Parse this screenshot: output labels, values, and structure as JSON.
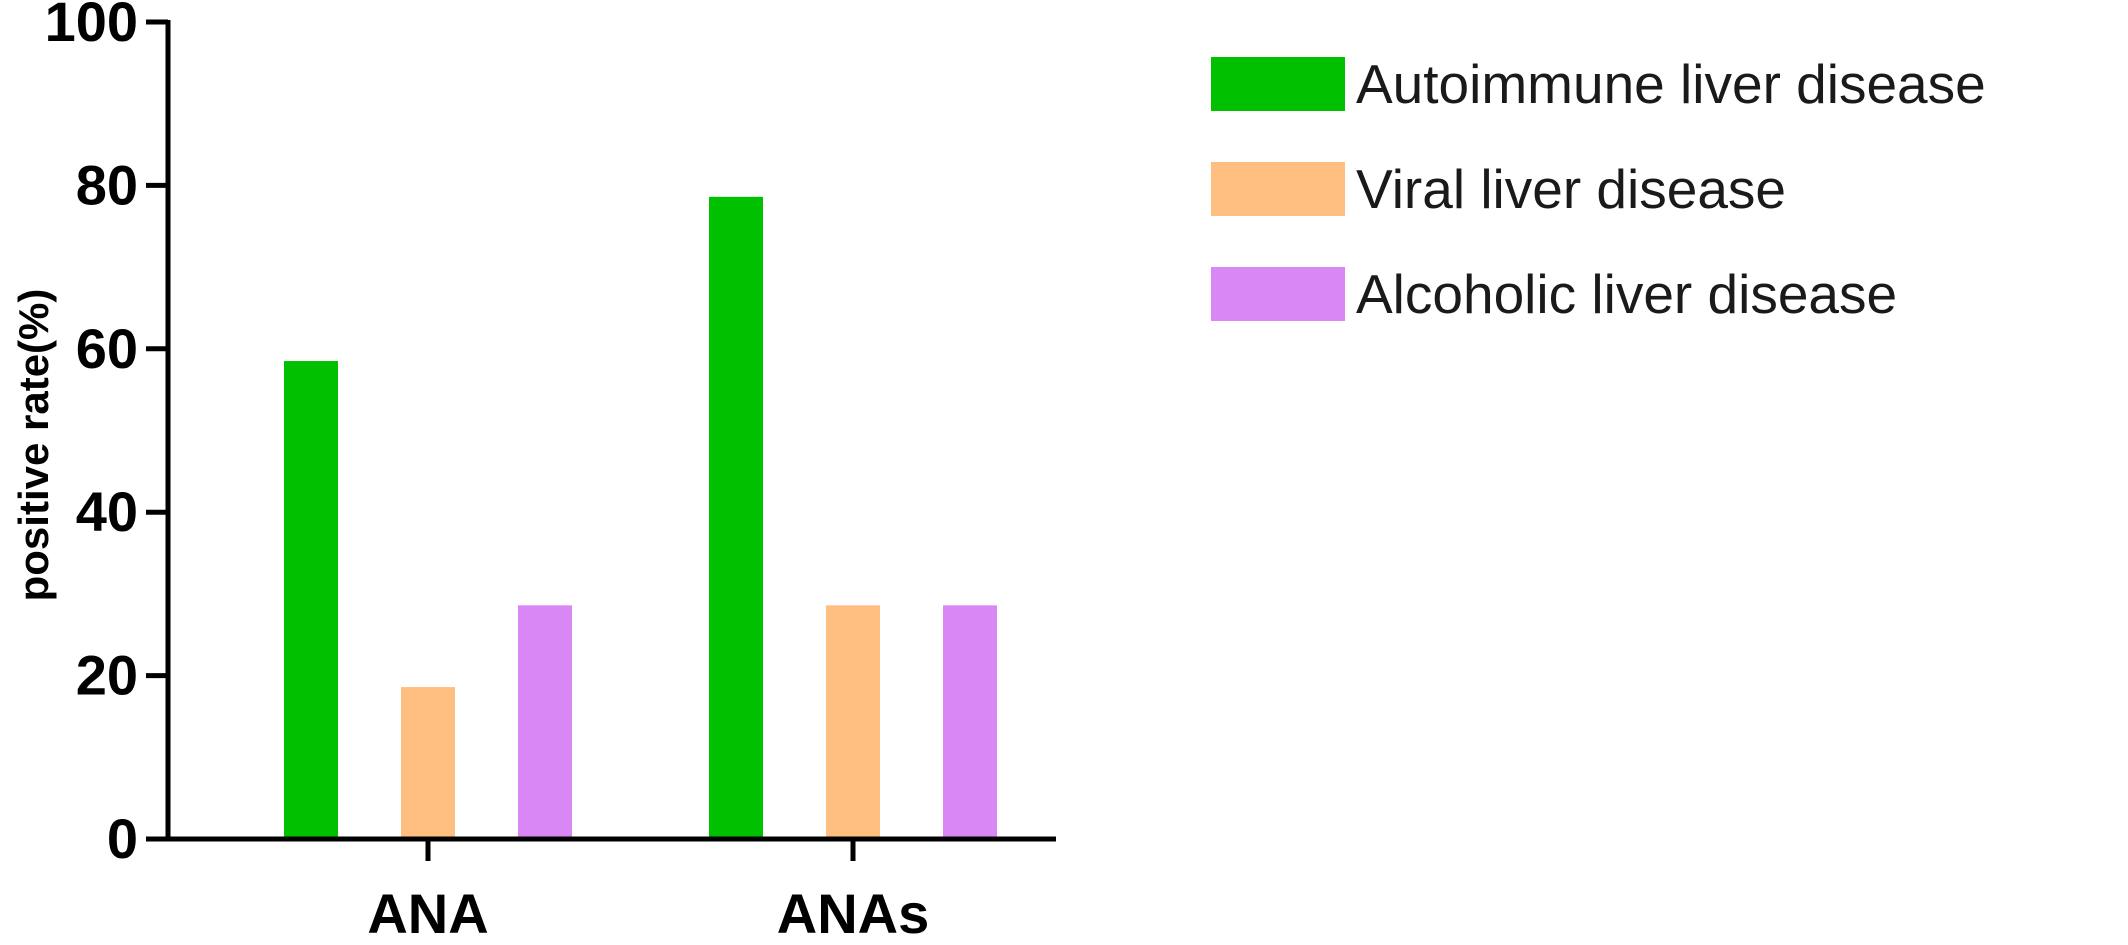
{
  "chart_data": {
    "type": "bar",
    "title": "",
    "xlabel": "",
    "ylabel": "positive rate(%)",
    "categories": [
      "ANA",
      "ANAs"
    ],
    "series": [
      {
        "name": "Autoimmune liver disease",
        "color": "#00c000",
        "values": [
          58.5,
          78.6
        ]
      },
      {
        "name": "Viral liver disease",
        "color": "#ffbf80",
        "values": [
          18.6,
          28.6
        ]
      },
      {
        "name": "Alcoholic liver disease",
        "color": "#d887f5",
        "values": [
          28.6,
          28.6
        ]
      }
    ],
    "ylim": [
      0,
      100
    ],
    "yticks": [
      0,
      20,
      40,
      60,
      80,
      100
    ],
    "grid": false,
    "legend_position": "top-right"
  }
}
